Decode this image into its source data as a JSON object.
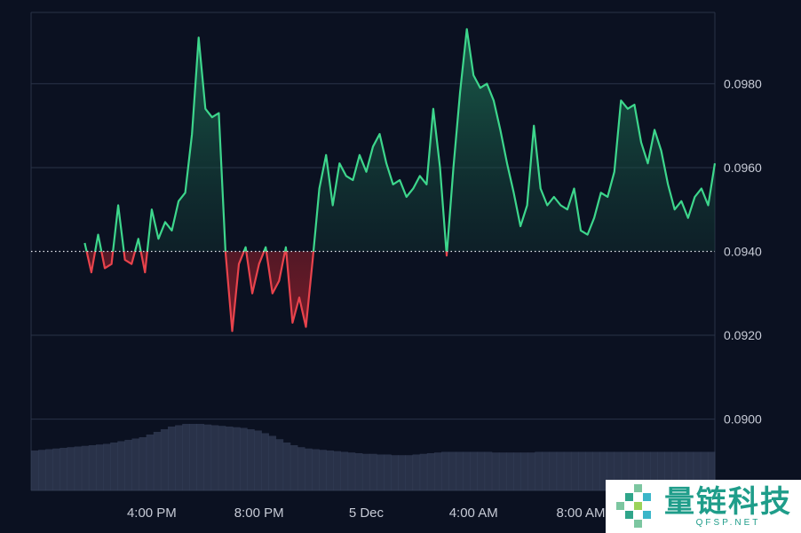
{
  "chart_data": {
    "type": "area",
    "x_ticks": [
      "4:00 PM",
      "8:00 PM",
      "5 Dec",
      "4:00 AM",
      "8:00 AM"
    ],
    "y_ticks": [
      "0.0980",
      "0.0960",
      "0.0940",
      "0.0920",
      "0.0900"
    ],
    "ylim": [
      0.0883,
      0.0997
    ],
    "baseline": 0.094,
    "grid": true,
    "colors": {
      "up": "#3dd68c",
      "down": "#e8434c",
      "grid": "#2a3347",
      "volume": "#3b4560"
    },
    "x": [
      13.5,
      13.75,
      14.0,
      14.25,
      14.5,
      14.75,
      15.0,
      15.25,
      15.5,
      15.75,
      16.0,
      16.25,
      16.5,
      16.75,
      17.0,
      17.25,
      17.5,
      17.75,
      18.0,
      18.25,
      18.5,
      18.75,
      19.0,
      19.25,
      19.5,
      19.75,
      20.0,
      20.25,
      20.5,
      20.75,
      21.0,
      21.25,
      21.5,
      21.75,
      22.0,
      22.25,
      22.5,
      22.75,
      23.0,
      23.25,
      23.5,
      23.75,
      24.0,
      24.25,
      24.5,
      24.75,
      25.0,
      25.25,
      25.5,
      25.75,
      26.0,
      26.25,
      26.5,
      26.75,
      27.0,
      27.25,
      27.5,
      27.75,
      28.0,
      28.25,
      28.5,
      28.75,
      29.0,
      29.25,
      29.5,
      29.75,
      30.0,
      30.25,
      30.5,
      30.75,
      31.0,
      31.25,
      31.5,
      31.75,
      32.0,
      32.25,
      32.5,
      32.75,
      33.0,
      33.25,
      33.5,
      33.75,
      34.0,
      34.25,
      34.5,
      34.75,
      35.0,
      35.25,
      35.5,
      35.75,
      36.0,
      36.25,
      36.5,
      36.75,
      37.0
    ],
    "values": [
      0.0942,
      0.0935,
      0.0944,
      0.0936,
      0.0937,
      0.0951,
      0.0938,
      0.0937,
      0.0943,
      0.0935,
      0.095,
      0.0943,
      0.0947,
      0.0945,
      0.0952,
      0.0954,
      0.0968,
      0.0991,
      0.0974,
      0.0972,
      0.0973,
      0.094,
      0.0921,
      0.0937,
      0.0941,
      0.093,
      0.0937,
      0.0941,
      0.093,
      0.0933,
      0.0941,
      0.0923,
      0.0929,
      0.0922,
      0.0938,
      0.0955,
      0.0963,
      0.0951,
      0.0961,
      0.0958,
      0.0957,
      0.0963,
      0.0959,
      0.0965,
      0.0968,
      0.0961,
      0.0956,
      0.0957,
      0.0953,
      0.0955,
      0.0958,
      0.0956,
      0.0974,
      0.096,
      0.0939,
      0.096,
      0.0978,
      0.0993,
      0.0982,
      0.0979,
      0.098,
      0.0976,
      0.0969,
      0.0961,
      0.0954,
      0.0946,
      0.0951,
      0.097,
      0.0955,
      0.0951,
      0.0953,
      0.0951,
      0.095,
      0.0955,
      0.0945,
      0.0944,
      0.0948,
      0.0954,
      0.0953,
      0.0959,
      0.0976,
      0.0974,
      0.0975,
      0.0966,
      0.0961,
      0.0969,
      0.0964,
      0.0956,
      0.095,
      0.0952,
      0.0948,
      0.0953,
      0.0955,
      0.0951,
      0.0961
    ],
    "volume": [
      0.6,
      0.61,
      0.62,
      0.63,
      0.64,
      0.65,
      0.66,
      0.67,
      0.68,
      0.69,
      0.7,
      0.72,
      0.74,
      0.76,
      0.78,
      0.8,
      0.84,
      0.88,
      0.92,
      0.96,
      0.98,
      1.0,
      1.0,
      1.0,
      0.99,
      0.98,
      0.97,
      0.96,
      0.95,
      0.94,
      0.92,
      0.9,
      0.86,
      0.82,
      0.77,
      0.72,
      0.68,
      0.65,
      0.63,
      0.62,
      0.61,
      0.6,
      0.59,
      0.58,
      0.57,
      0.56,
      0.55,
      0.55,
      0.54,
      0.54,
      0.53,
      0.53,
      0.53,
      0.54,
      0.55,
      0.56,
      0.57,
      0.58,
      0.58,
      0.58,
      0.58,
      0.58,
      0.58,
      0.58,
      0.57,
      0.57,
      0.57,
      0.57,
      0.57,
      0.57,
      0.58,
      0.58,
      0.58,
      0.58,
      0.58,
      0.58,
      0.58,
      0.58,
      0.58,
      0.58,
      0.58,
      0.58,
      0.58,
      0.58,
      0.58,
      0.58,
      0.58,
      0.58,
      0.58,
      0.58,
      0.58,
      0.58,
      0.58,
      0.58,
      0.58
    ]
  },
  "watermark": {
    "name": "量链科技",
    "url": "QFSP.NET"
  }
}
